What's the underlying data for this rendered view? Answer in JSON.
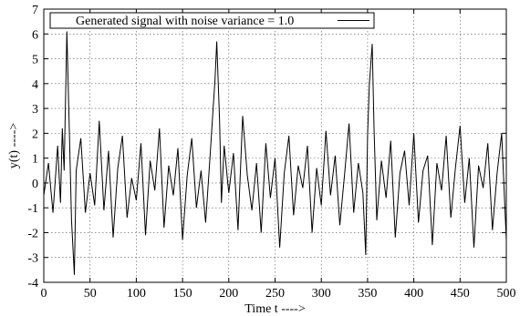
{
  "chart_data": {
    "type": "line",
    "title": "",
    "xlabel": "Time t ---->",
    "ylabel": "y(t) ---->",
    "xlim": [
      0,
      500
    ],
    "ylim": [
      -4,
      7
    ],
    "xticks": [
      0,
      50,
      100,
      150,
      200,
      250,
      300,
      350,
      400,
      450,
      500
    ],
    "yticks": [
      -4,
      -3,
      -2,
      -1,
      0,
      1,
      2,
      3,
      4,
      5,
      6,
      7
    ],
    "grid": true,
    "legend_position": "top-left",
    "line_color": "#000000",
    "series": [
      {
        "name": "Generated signal with noise variance = 1.0",
        "x": [
          0,
          5,
          10,
          15,
          18,
          20,
          22,
          25,
          27,
          30,
          33,
          35,
          40,
          45,
          50,
          55,
          60,
          65,
          70,
          75,
          80,
          85,
          90,
          95,
          100,
          105,
          110,
          115,
          120,
          125,
          130,
          135,
          140,
          145,
          150,
          155,
          160,
          165,
          170,
          175,
          180,
          183,
          185,
          187,
          190,
          192,
          195,
          200,
          205,
          210,
          215,
          220,
          225,
          230,
          235,
          240,
          245,
          250,
          255,
          260,
          265,
          270,
          275,
          280,
          285,
          290,
          295,
          300,
          305,
          310,
          315,
          320,
          325,
          330,
          335,
          340,
          345,
          348,
          350,
          352,
          355,
          357,
          360,
          365,
          370,
          375,
          380,
          385,
          390,
          395,
          400,
          405,
          410,
          415,
          420,
          425,
          430,
          435,
          440,
          445,
          450,
          455,
          460,
          465,
          470,
          475,
          480,
          485,
          490,
          495,
          500
        ],
        "y": [
          -0.5,
          0.8,
          -1.2,
          1.5,
          -0.8,
          2.2,
          0.5,
          6.1,
          3.0,
          -1.5,
          -3.7,
          0.5,
          1.8,
          -1.2,
          0.4,
          -0.9,
          2.5,
          -1.1,
          1.3,
          -2.2,
          0.6,
          1.9,
          -1.4,
          0.2,
          -0.7,
          1.6,
          -2.1,
          0.9,
          -0.3,
          2.2,
          -1.8,
          0.7,
          -0.5,
          1.4,
          -2.3,
          0.3,
          1.8,
          -1.0,
          0.5,
          -1.6,
          1.2,
          3.0,
          4.1,
          5.7,
          2.5,
          -0.8,
          1.5,
          -0.4,
          1.2,
          -1.9,
          2.7,
          0.3,
          -1.1,
          0.8,
          -2.0,
          1.6,
          -0.6,
          1.0,
          -2.6,
          0.4,
          1.9,
          -1.3,
          0.7,
          -0.2,
          1.5,
          -2.0,
          0.6,
          -0.9,
          2.1,
          -0.5,
          1.1,
          -1.7,
          0.3,
          2.4,
          -1.2,
          0.8,
          -0.4,
          -2.9,
          1.9,
          4.0,
          5.6,
          2.2,
          -1.5,
          0.9,
          -0.6,
          1.7,
          -2.2,
          0.4,
          1.3,
          -0.9,
          2.0,
          -1.6,
          0.5,
          1.1,
          -2.5,
          0.8,
          -0.3,
          1.9,
          -1.4,
          0.6,
          2.3,
          -0.8,
          1.0,
          -2.6,
          0.7,
          -0.2,
          1.6,
          -1.9,
          0.4,
          2.0,
          -2.3
        ]
      }
    ]
  }
}
